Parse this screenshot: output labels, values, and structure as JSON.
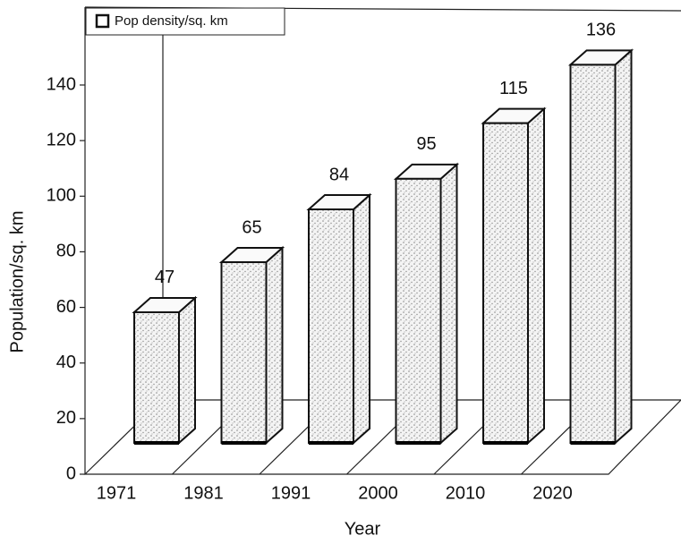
{
  "chart_data": {
    "type": "bar3d",
    "categories": [
      "1971",
      "1981",
      "1991",
      "2000",
      "2010",
      "2020"
    ],
    "series": [
      {
        "name": "Pop density/sq. km",
        "color": "#8a8a8a",
        "values": [
          47,
          65,
          84,
          95,
          115,
          136
        ]
      }
    ],
    "ylim": [
      0,
      140
    ],
    "yticks": [
      0,
      20,
      40,
      60,
      80,
      100,
      120,
      140
    ],
    "ylabel": "Population/sq. km",
    "xlabel": "Year"
  }
}
